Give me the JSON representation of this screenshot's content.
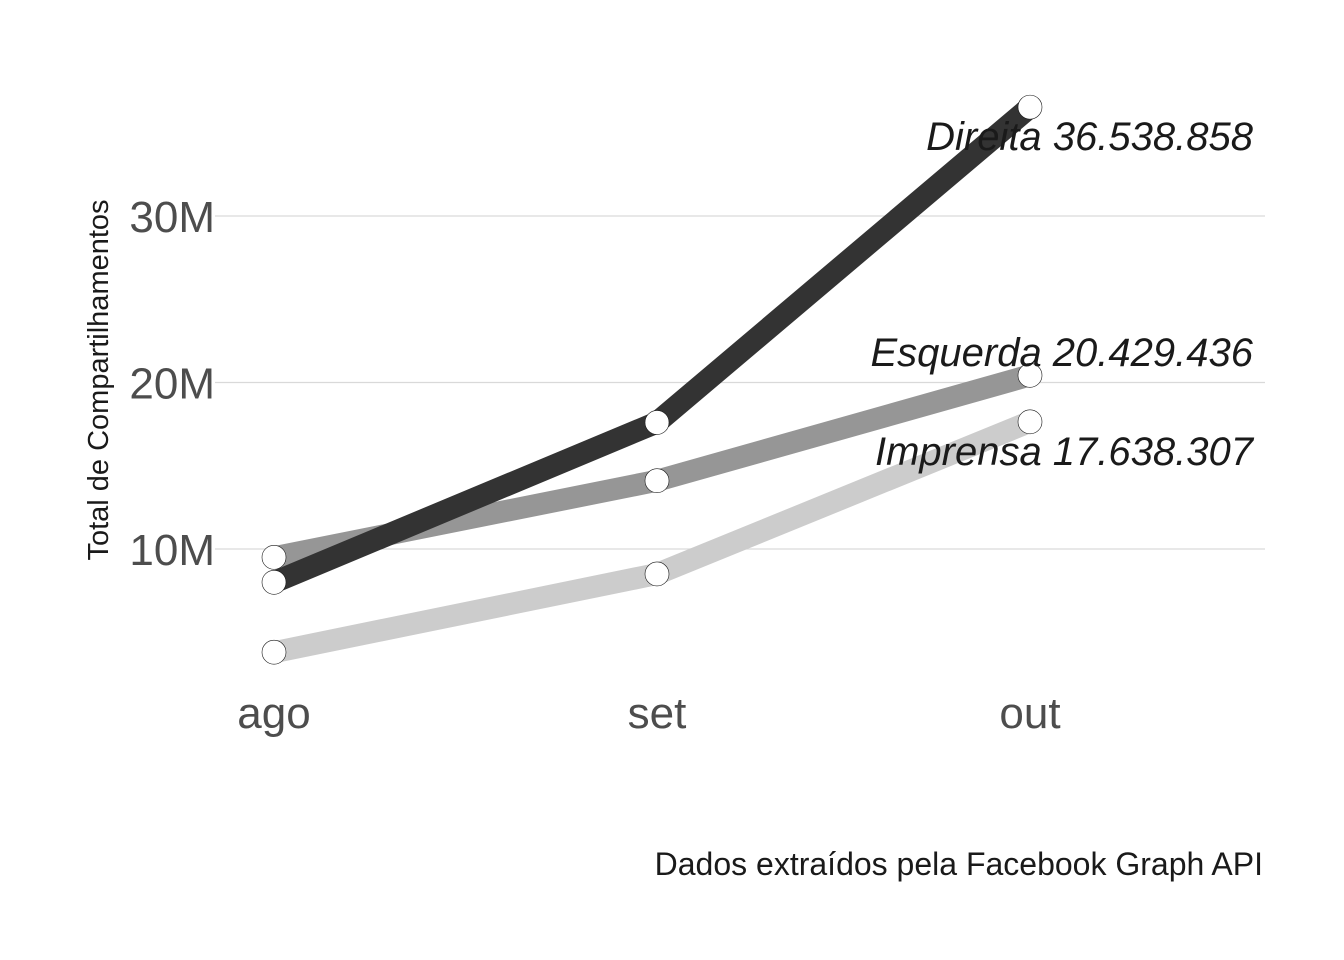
{
  "chart_data": {
    "type": "line",
    "categories": [
      "ago",
      "set",
      "out"
    ],
    "ylabel": "Total de Compartilhamentos",
    "caption": "Dados extraídos pela Facebook Graph API",
    "y_ticks": [
      {
        "value": 10000000,
        "label": "10M"
      },
      {
        "value": 20000000,
        "label": "20M"
      },
      {
        "value": 30000000,
        "label": "30M"
      }
    ],
    "ylim": [
      2500000,
      39000000
    ],
    "grid": "horizontal major only",
    "series": [
      {
        "name": "Imprensa",
        "values": [
          3800000,
          8500000,
          17638307
        ],
        "color": "#cccccc",
        "end_label": "Imprensa 17.638.307"
      },
      {
        "name": "Esquerda",
        "values": [
          9500000,
          14100000,
          20429436
        ],
        "color": "#969696",
        "end_label": "Esquerda 20.429.436"
      },
      {
        "name": "Direita",
        "values": [
          8000000,
          17600000,
          36538858
        ],
        "color": "#333333",
        "end_label": "Direita 36.538.858"
      }
    ]
  }
}
